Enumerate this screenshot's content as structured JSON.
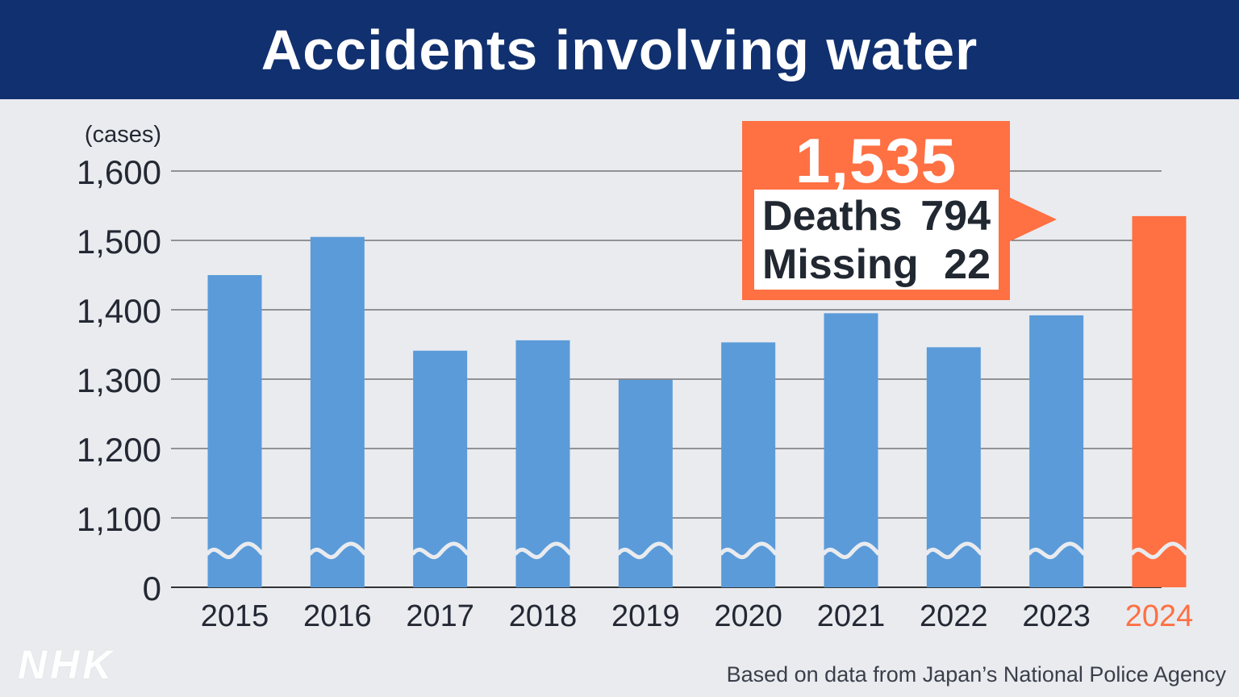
{
  "header": {
    "title": "Accidents involving water"
  },
  "chart_data": {
    "type": "bar",
    "ylabel": "(cases)",
    "categories": [
      "2015",
      "2016",
      "2017",
      "2018",
      "2019",
      "2020",
      "2021",
      "2022",
      "2023",
      "2024"
    ],
    "values": [
      1450,
      1505,
      1341,
      1356,
      1299,
      1353,
      1395,
      1346,
      1392,
      1535
    ],
    "y_ticks": [
      "0",
      "1,100",
      "1,200",
      "1,300",
      "1,400",
      "1,500",
      "1,600"
    ],
    "ylim": [
      1000,
      1600
    ],
    "axis_break": "between 0 and 1,100",
    "grid": true,
    "colors": {
      "default": "#5b9bd9",
      "highlight": "#ff7043",
      "highlight_category": "2024"
    },
    "callout": {
      "total": "1,535",
      "rows": [
        {
          "label": "Deaths",
          "value": "794"
        },
        {
          "label": "Missing",
          "value": "22"
        }
      ]
    }
  },
  "footer": {
    "brand": "NHK",
    "source": "Based on data from Japan’s National Police Agency"
  }
}
